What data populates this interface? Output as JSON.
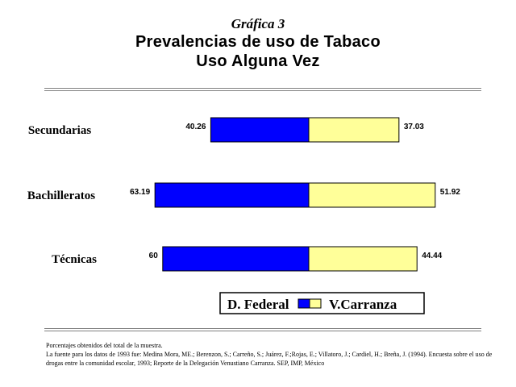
{
  "header": {
    "figure_label": "Gráfica 3",
    "title_line1": "Prevalencias de uso de Tabaco",
    "title_line2": "Uso Alguna Vez"
  },
  "chart_data": {
    "type": "bar",
    "orientation": "horizontal",
    "stacked": "diverging",
    "categories": [
      "Secundarias",
      "Bachilleratos",
      "Técnicas"
    ],
    "series": [
      {
        "name": "D. Federal",
        "values": [
          40.26,
          63.19,
          60
        ],
        "color": "#0000ff"
      },
      {
        "name": "V.Carranza",
        "values": [
          37.03,
          51.92,
          44.44
        ],
        "color": "#ffff99"
      }
    ],
    "data_labels": [
      [
        "40.26",
        "63.19",
        "60"
      ],
      [
        "37.03",
        "51.92",
        "44.44"
      ]
    ],
    "legend_position": "bottom",
    "grid": false
  },
  "notes": {
    "line1": "Porcentajes obtenidos del total de la muestra.",
    "line2": "La fuente para los datos de 1993 fue: Medina Mora, ME.; Berenzon, S.; Carreño, S.; Juárez, F.;Rojas, E.; Villatoro, J.; Cardiel, H.; Breña, J. (1994). Encuesta sobre el uso de drogas entre la comunidad escolar, 1993; Reporte de la Delegación Venustiano Carranza. SEP, IMP, México"
  }
}
